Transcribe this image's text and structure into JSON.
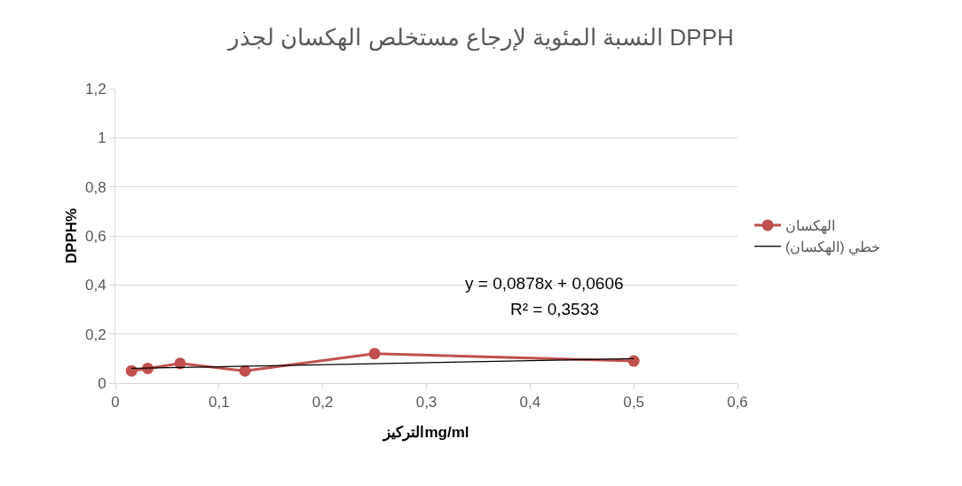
{
  "chart_data": {
    "type": "line",
    "title": "النسبة المئوية لإرجاع مستخلص الهكسان لجذر DPPH",
    "xlabel": "التركيزmg/ml",
    "ylabel": "DPPH%",
    "x": [
      0.015625,
      0.03125,
      0.0625,
      0.125,
      0.25,
      0.5
    ],
    "series": [
      {
        "name": "الهكسان",
        "color": "#c0504d",
        "values": [
          0.05,
          0.06,
          0.08,
          0.05,
          0.12,
          0.09
        ],
        "marker": "circle"
      },
      {
        "name": "خطي (الهكسان)",
        "color": "#000000",
        "x": [
          0.015625,
          0.5
        ],
        "values": [
          0.06,
          0.1
        ],
        "marker": "none"
      }
    ],
    "annotations": [
      "y = 0,0878x + 0,0606",
      "R² = 0,3533"
    ],
    "xlim": [
      0,
      0.6
    ],
    "xticks": [
      {
        "value": 0,
        "label": "0"
      },
      {
        "value": 0.1,
        "label": "0,1"
      },
      {
        "value": 0.2,
        "label": "0,2"
      },
      {
        "value": 0.3,
        "label": "0,3"
      },
      {
        "value": 0.4,
        "label": "0,4"
      },
      {
        "value": 0.5,
        "label": "0,5"
      },
      {
        "value": 0.6,
        "label": "0,6"
      }
    ],
    "ylim": [
      0,
      1.2
    ],
    "yticks": [
      {
        "value": 0,
        "label": "0"
      },
      {
        "value": 0.2,
        "label": "0,2"
      },
      {
        "value": 0.4,
        "label": "0,4"
      },
      {
        "value": 0.6,
        "label": "0,6"
      },
      {
        "value": 0.8,
        "label": "0,8"
      },
      {
        "value": 1,
        "label": "1"
      },
      {
        "value": 1.2,
        "label": "1,2"
      }
    ],
    "grid": "y",
    "legend": "right"
  }
}
